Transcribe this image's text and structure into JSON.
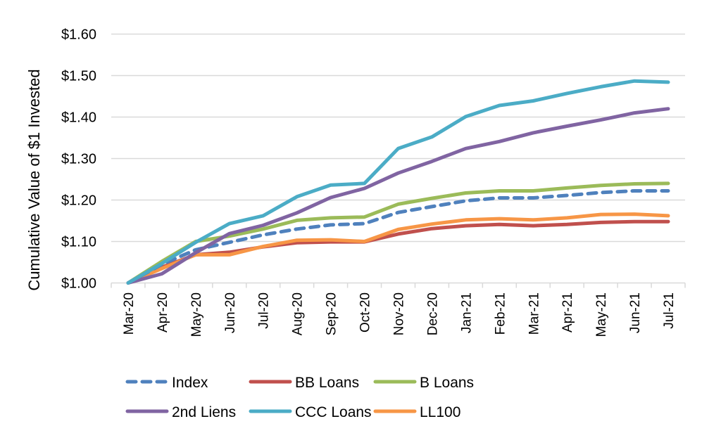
{
  "chart_data": {
    "type": "line",
    "title": "",
    "xlabel": "",
    "ylabel": "Cumulative Value of $1 Invested",
    "ylim": [
      1.0,
      1.6
    ],
    "yticks": [
      1.0,
      1.1,
      1.2,
      1.3,
      1.4,
      1.5,
      1.6
    ],
    "ytick_labels": [
      "$1.00",
      "$1.10",
      "$1.20",
      "$1.30",
      "$1.40",
      "$1.50",
      "$1.60"
    ],
    "grid": true,
    "legend_position": "bottom",
    "categories": [
      "Mar-20",
      "Apr-20",
      "May-20",
      "Jun-20",
      "Jul-20",
      "Aug-20",
      "Sep-20",
      "Oct-20",
      "Nov-20",
      "Dec-20",
      "Jan-21",
      "Feb-21",
      "Mar-21",
      "Apr-21",
      "May-21",
      "Jun-21",
      "Jul-21"
    ],
    "series": [
      {
        "name": "Index",
        "color": "#4F81BD",
        "dashed": true,
        "values": [
          1.0,
          1.045,
          1.08,
          1.098,
          1.116,
          1.13,
          1.14,
          1.143,
          1.17,
          1.184,
          1.198,
          1.205,
          1.205,
          1.211,
          1.218,
          1.222,
          1.222
        ]
      },
      {
        "name": "BB Loans",
        "color": "#C0504D",
        "dashed": false,
        "values": [
          1.0,
          1.038,
          1.068,
          1.074,
          1.087,
          1.097,
          1.099,
          1.099,
          1.118,
          1.131,
          1.138,
          1.141,
          1.138,
          1.141,
          1.146,
          1.148,
          1.148
        ]
      },
      {
        "name": "B Loans",
        "color": "#9BBB59",
        "dashed": false,
        "values": [
          1.0,
          1.052,
          1.1,
          1.113,
          1.13,
          1.151,
          1.157,
          1.159,
          1.19,
          1.204,
          1.217,
          1.222,
          1.222,
          1.229,
          1.235,
          1.239,
          1.24
        ]
      },
      {
        "name": "2nd Liens",
        "color": "#8064A2",
        "dashed": false,
        "values": [
          1.0,
          1.022,
          1.073,
          1.119,
          1.139,
          1.169,
          1.206,
          1.228,
          1.265,
          1.293,
          1.324,
          1.341,
          1.362,
          1.378,
          1.393,
          1.41,
          1.42
        ]
      },
      {
        "name": "CCC Loans",
        "color": "#4BACC6",
        "dashed": false,
        "values": [
          1.0,
          1.047,
          1.098,
          1.143,
          1.162,
          1.208,
          1.236,
          1.24,
          1.324,
          1.352,
          1.401,
          1.428,
          1.439,
          1.457,
          1.473,
          1.487,
          1.484
        ]
      },
      {
        "name": "LL100",
        "color": "#F79646",
        "dashed": false,
        "values": [
          1.0,
          1.035,
          1.068,
          1.068,
          1.088,
          1.103,
          1.104,
          1.1,
          1.129,
          1.142,
          1.152,
          1.155,
          1.152,
          1.157,
          1.165,
          1.166,
          1.162
        ]
      }
    ],
    "legend": [
      {
        "name": "Index"
      },
      {
        "name": "BB Loans"
      },
      {
        "name": "B Loans"
      },
      {
        "name": "2nd Liens"
      },
      {
        "name": "CCC Loans"
      },
      {
        "name": "LL100"
      }
    ]
  },
  "colors": {
    "gridline": "#D9D9D9",
    "axis": "#D9D9D9",
    "text": "#000000"
  }
}
